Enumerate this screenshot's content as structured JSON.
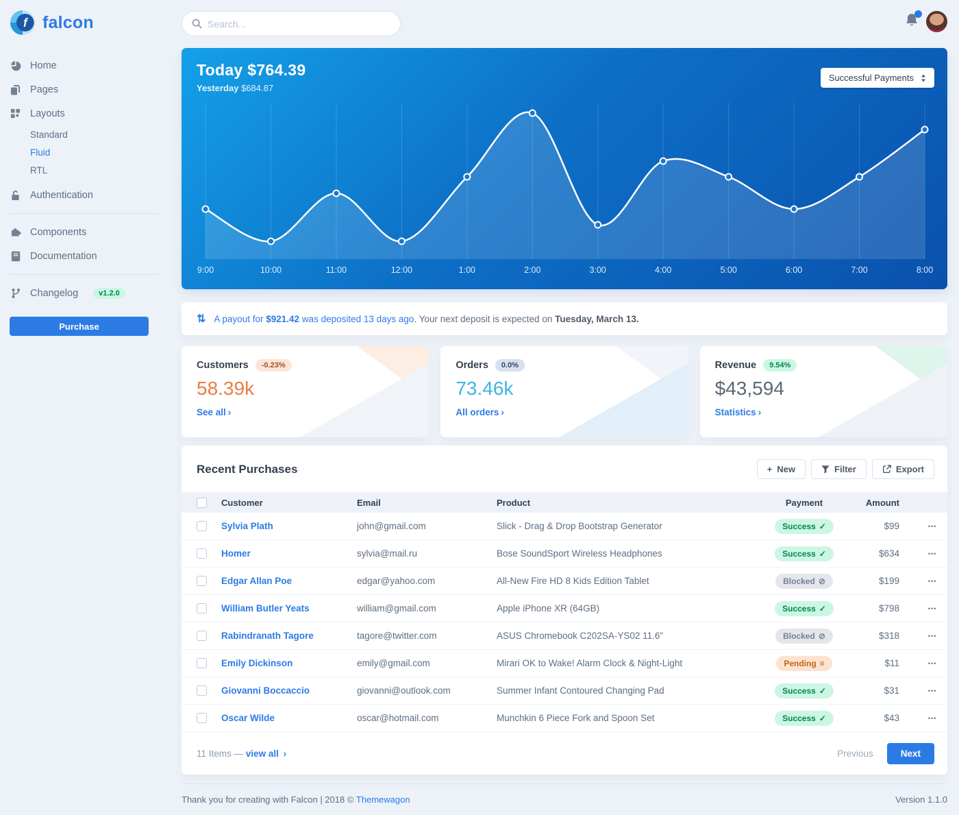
{
  "sidebar": {
    "logo_text": "falcon",
    "items": [
      {
        "label": "Home",
        "icon": "pie-chart-icon"
      },
      {
        "label": "Pages",
        "icon": "copy-icon"
      },
      {
        "label": "Layouts",
        "icon": "grid-icon",
        "children": [
          {
            "label": "Standard",
            "active": false
          },
          {
            "label": "Fluid",
            "active": true
          },
          {
            "label": "RTL",
            "active": false
          }
        ]
      },
      {
        "label": "Authentication",
        "icon": "unlock-icon"
      },
      {
        "label": "Components",
        "icon": "puzzle-icon"
      },
      {
        "label": "Documentation",
        "icon": "book-icon"
      },
      {
        "label": "Changelog",
        "icon": "code-branch-icon",
        "badge": "v1.2.0"
      }
    ],
    "purchase_label": "Purchase"
  },
  "topbar": {
    "search_placeholder": "Search...",
    "icons": [
      "search-icon",
      "bell-icon",
      "avatar"
    ]
  },
  "chart_card": {
    "today_label": "Today",
    "today_value": "$764.39",
    "yesterday_label": "Yesterday",
    "yesterday_value": "$684.87",
    "select_value": "Successful Payments"
  },
  "chart_data": {
    "type": "line",
    "title": "",
    "x": [
      "9:00",
      "10:00",
      "11:00",
      "12:00",
      "1:00",
      "2:00",
      "3:00",
      "4:00",
      "5:00",
      "6:00",
      "7:00",
      "8:00"
    ],
    "series": [
      {
        "name": "Successful Payments",
        "values": [
          73,
          26,
          96,
          26,
          120,
          213,
          50,
          143,
          120,
          73,
          120,
          189
        ]
      }
    ],
    "ylim": [
      0,
      230
    ],
    "grid": "vertical-only",
    "legend": false,
    "style": {
      "line_color": "#ffffff",
      "area_fill": "rgba(255,255,255,0.14)",
      "background": "blue-gradient"
    }
  },
  "payout_notice": {
    "highlight": "A payout for",
    "amount": "$921.42",
    "highlight_rest": "was deposited 13 days ago",
    "muted": ". Your next deposit is expected on ",
    "strong": "Tuesday, March 13."
  },
  "stat_cards": [
    {
      "title": "Customers",
      "badge": "-0.23%",
      "value": "58.39k",
      "link": "See all",
      "accent": "#ed7b45",
      "badge_bg": "#fce5d8",
      "badge_color": "#9d5228"
    },
    {
      "title": "Orders",
      "badge": "0.0%",
      "value": "73.46k",
      "link": "All orders",
      "accent": "#3db4e6",
      "badge_bg": "#d6e0f0",
      "badge_color": "#3a486b"
    },
    {
      "title": "Revenue",
      "badge": "9.54%",
      "value": "$43,594",
      "link": "Statistics",
      "accent": "#5a6877",
      "badge_bg": "#ccf6e4",
      "badge_color": "#00864e"
    }
  ],
  "purchases": {
    "title": "Recent Purchases",
    "buttons": [
      {
        "label": "New",
        "icon": "plus-icon"
      },
      {
        "label": "Filter",
        "icon": "filter-icon"
      },
      {
        "label": "Export",
        "icon": "export-icon"
      }
    ],
    "columns": [
      "Customer",
      "Email",
      "Product",
      "Payment",
      "Amount"
    ],
    "rows": [
      {
        "customer": "Sylvia Plath",
        "email": "john@gmail.com",
        "product": "Slick - Drag & Drop Bootstrap Generator",
        "payment": "Success",
        "amount": "$99"
      },
      {
        "customer": "Homer",
        "email": "sylvia@mail.ru",
        "product": "Bose SoundSport Wireless Headphones",
        "payment": "Success",
        "amount": "$634"
      },
      {
        "customer": "Edgar Allan Poe",
        "email": "edgar@yahoo.com",
        "product": "All-New Fire HD 8 Kids Edition Tablet",
        "payment": "Blocked",
        "amount": "$199"
      },
      {
        "customer": "William Butler Yeats",
        "email": "william@gmail.com",
        "product": "Apple iPhone XR (64GB)",
        "payment": "Success",
        "amount": "$798"
      },
      {
        "customer": "Rabindranath Tagore",
        "email": "tagore@twitter.com",
        "product": "ASUS Chromebook C202SA-YS02 11.6\"",
        "payment": "Blocked",
        "amount": "$318"
      },
      {
        "customer": "Emily Dickinson",
        "email": "emily@gmail.com",
        "product": "Mirari OK to Wake! Alarm Clock & Night-Light",
        "payment": "Pending",
        "amount": "$11"
      },
      {
        "customer": "Giovanni Boccaccio",
        "email": "giovanni@outlook.com",
        "product": "Summer Infant Contoured Changing Pad",
        "payment": "Success",
        "amount": "$31"
      },
      {
        "customer": "Oscar Wilde",
        "email": "oscar@hotmail.com",
        "product": "Munchkin 6 Piece Fork and Spoon Set",
        "payment": "Success",
        "amount": "$43"
      }
    ],
    "footer": {
      "count_label": "11 Items —",
      "view_all": "view all",
      "previous": "Previous",
      "next": "Next"
    }
  },
  "footer": {
    "thanks": "Thank you for creating with Falcon | 2018 © ",
    "link": "Themewagon",
    "version": "Version 1.1.0"
  }
}
